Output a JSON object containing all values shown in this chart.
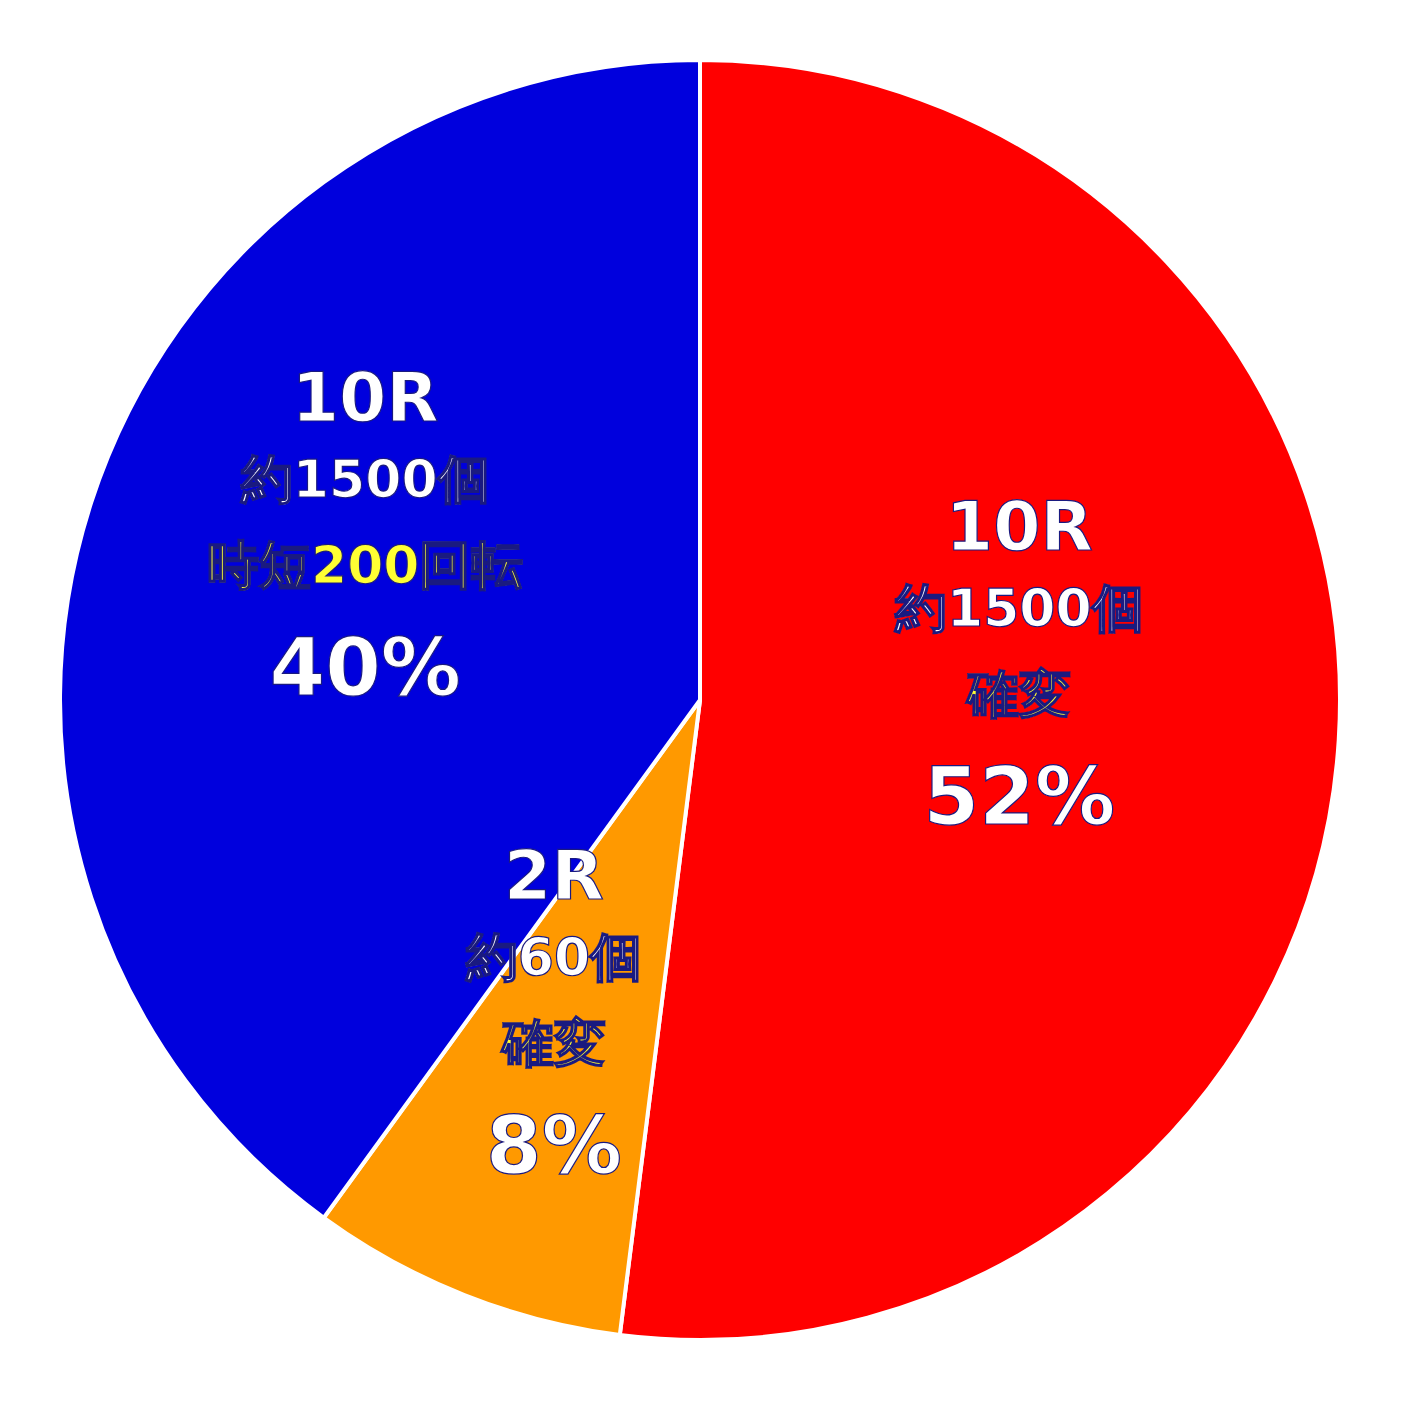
{
  "chart_data": {
    "type": "pie",
    "categories": [
      "確変",
      "確変",
      "時短200回転"
    ],
    "values": [
      52,
      8,
      40
    ],
    "colors": [
      "#ff0000",
      "#ff9900",
      "#0000dd"
    ],
    "value_labels": [
      "52%",
      "8%",
      "40%"
    ],
    "annotations": [
      "10R",
      "約1500個",
      "2R",
      "約60個",
      "10R",
      "約1500個"
    ],
    "legend": false
  }
}
